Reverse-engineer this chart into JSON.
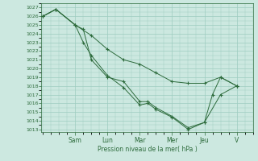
{
  "background_color": "#cce8e0",
  "grid_color": "#9eccc0",
  "line_color": "#2d6b3c",
  "xlabel": "Pression niveau de la mer( hPa )",
  "ylim": [
    1013,
    1027
  ],
  "yticks": [
    1013,
    1014,
    1015,
    1016,
    1017,
    1018,
    1019,
    1020,
    1021,
    1022,
    1023,
    1024,
    1025,
    1026,
    1027
  ],
  "x_day_labels": [
    "Sam",
    "Lun",
    "Mar",
    "Mer",
    "Jeu",
    "V"
  ],
  "x_day_positions": [
    2,
    4,
    6,
    8,
    10,
    12
  ],
  "xlim": [
    -0.1,
    13.0
  ],
  "series": [
    {
      "x": [
        0.0,
        0.8,
        2.0,
        3.0,
        4.0,
        5.0,
        6.0,
        7.0,
        8.0,
        9.0,
        10.0,
        11.0,
        12.0
      ],
      "y": [
        1026.0,
        1026.8,
        1025.0,
        1023.8,
        1022.2,
        1021.0,
        1020.5,
        1019.5,
        1018.5,
        1018.3,
        1018.3,
        1019.0,
        1018.0
      ]
    },
    {
      "x": [
        0.0,
        0.8,
        2.0,
        2.5,
        3.0,
        4.0,
        5.0,
        6.0,
        6.5,
        7.0,
        8.0,
        9.0,
        10.0,
        10.5,
        11.0,
        12.0
      ],
      "y": [
        1026.0,
        1026.8,
        1025.0,
        1024.5,
        1021.0,
        1019.0,
        1018.5,
        1016.2,
        1016.2,
        1015.5,
        1014.5,
        1013.2,
        1013.8,
        1017.0,
        1019.0,
        1018.0
      ]
    },
    {
      "x": [
        0.0,
        0.8,
        2.0,
        2.5,
        3.0,
        4.0,
        5.0,
        6.0,
        6.5,
        7.0,
        8.0,
        9.0,
        10.0,
        11.0,
        12.0
      ],
      "y": [
        1026.0,
        1026.8,
        1025.0,
        1023.0,
        1021.5,
        1019.2,
        1017.8,
        1015.8,
        1016.0,
        1015.3,
        1014.4,
        1013.0,
        1013.8,
        1017.0,
        1018.0
      ]
    }
  ]
}
